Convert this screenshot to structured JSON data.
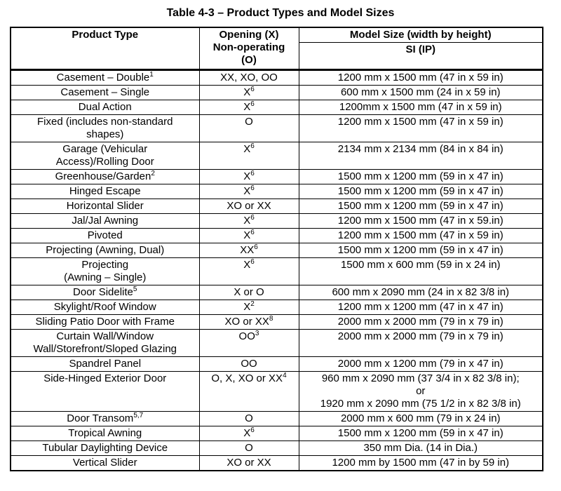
{
  "colors": {
    "text": "#000000",
    "background": "#ffffff",
    "border": "#000000"
  },
  "title": "Table 4-3 – Product Types and Model Sizes",
  "table": {
    "headers": {
      "product": "Product Type",
      "opening": "Opening (X)\nNon-operating\n(O)",
      "model_size": "Model Size (width by height)",
      "model_size_sub": "SI (IP)"
    },
    "rows": [
      {
        "product": "Casement – Double",
        "product_sup": "1",
        "opening": "XX, XO, OO",
        "opening_sup": "",
        "size": "1200 mm x 1500 mm (47 in x 59 in)"
      },
      {
        "product": "Casement – Single",
        "product_sup": "",
        "opening": "X",
        "opening_sup": "6",
        "size": "600 mm x 1500 mm (24 in x 59 in)"
      },
      {
        "product": "Dual Action",
        "product_sup": "",
        "opening": "X",
        "opening_sup": "6",
        "size": "1200mm x 1500 mm (47 in x 59 in)"
      },
      {
        "product": "Fixed (includes non-standard\nshapes)",
        "product_sup": "",
        "opening": "O",
        "opening_sup": "",
        "size": "1200 mm x 1500 mm (47 in x 59 in)"
      },
      {
        "product": "Garage (Vehicular\nAccess)/Rolling Door",
        "product_sup": "",
        "opening": "X",
        "opening_sup": "6",
        "size": "2134 mm x 2134 mm (84 in x 84 in)"
      },
      {
        "product": "Greenhouse/Garden",
        "product_sup": "2",
        "opening": "X",
        "opening_sup": "6",
        "size": "1500 mm x 1200 mm (59 in x 47 in)"
      },
      {
        "product": "Hinged Escape",
        "product_sup": "",
        "opening": "X",
        "opening_sup": "6",
        "size": "1500 mm x 1200 mm (59 in x 47 in)"
      },
      {
        "product": "Horizontal Slider",
        "product_sup": "",
        "opening": "XO or XX",
        "opening_sup": "",
        "size": "1500 mm x 1200 mm (59 in x 47 in)"
      },
      {
        "product": "Jal/Jal Awning",
        "product_sup": "",
        "opening": "X",
        "opening_sup": "6",
        "size": "1200 mm x 1500 mm (47 in x 59.in)"
      },
      {
        "product": "Pivoted",
        "product_sup": "",
        "opening": "X",
        "opening_sup": "6",
        "size": "1200 mm x 1500 mm (47 in x 59 in)"
      },
      {
        "product": "Projecting (Awning, Dual)",
        "product_sup": "",
        "opening": "XX",
        "opening_sup": "6",
        "size": "1500 mm x 1200 mm (59 in x 47 in)"
      },
      {
        "product": "Projecting\n(Awning – Single)",
        "product_sup": "",
        "opening": "X",
        "opening_sup": "6",
        "size": "1500 mm x 600 mm (59 in x 24 in)"
      },
      {
        "product": "Door Sidelite",
        "product_sup": "5",
        "opening": "X or O",
        "opening_sup": "",
        "size": "600 mm x 2090 mm (24 in x 82 3/8 in)"
      },
      {
        "product": "Skylight/Roof Window",
        "product_sup": "",
        "opening": "X",
        "opening_sup": "2",
        "size": "1200 mm x 1200 mm (47 in x 47 in)"
      },
      {
        "product": "Sliding Patio Door with Frame",
        "product_sup": "",
        "opening": "XO or XX",
        "opening_sup": "8",
        "size": "2000 mm x 2000 mm (79 in x 79 in)"
      },
      {
        "product": "Curtain Wall/Window\nWall/Storefront/Sloped Glazing",
        "product_sup": "",
        "opening": "OO",
        "opening_sup": "3",
        "size": "2000 mm x 2000 mm (79 in x 79 in)"
      },
      {
        "product": "Spandrel Panel",
        "product_sup": "",
        "opening": "OO",
        "opening_sup": "",
        "size": "2000 mm x 1200 mm (79 in x 47 in)"
      },
      {
        "product": "Side-Hinged Exterior Door",
        "product_sup": "",
        "opening": "O, X, XO or XX",
        "opening_sup": "4",
        "size": "960 mm x 2090 mm (37 3/4 in x 82 3/8 in);\nor\n1920 mm x 2090 mm (75 1/2 in x 82 3/8 in)"
      },
      {
        "product": "Door Transom",
        "product_sup": "5,7",
        "opening": "O",
        "opening_sup": "",
        "size": "2000 mm x 600 mm (79 in x 24 in)"
      },
      {
        "product": "Tropical Awning",
        "product_sup": "",
        "opening": "X",
        "opening_sup": "6",
        "size": "1500 mm x 1200 mm (59 in x 47 in)"
      },
      {
        "product": "Tubular Daylighting Device",
        "product_sup": "",
        "opening": "O",
        "opening_sup": "",
        "size": "350 mm Dia. (14 in Dia.)"
      },
      {
        "product": "Vertical Slider",
        "product_sup": "",
        "opening": "XO or XX",
        "opening_sup": "",
        "size": "1200 mm by 1500 mm (47 in by 59 in)"
      }
    ]
  }
}
